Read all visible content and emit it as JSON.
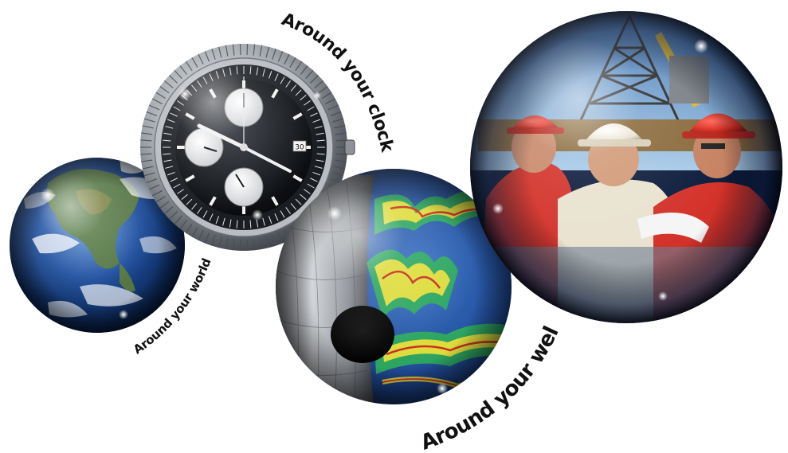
{
  "captions": {
    "world": "Around your world",
    "clock": "Around your clock",
    "well": "Around your well"
  },
  "watch": {
    "date": "30"
  },
  "spheres": [
    {
      "id": "globe",
      "subject": "earth"
    },
    {
      "id": "watch",
      "subject": "chronograph-watch"
    },
    {
      "id": "well",
      "subject": "wellbore-seismic"
    },
    {
      "id": "crew",
      "subject": "oil-rig-workers"
    }
  ],
  "colors": {
    "caption": "#111111",
    "ocean": "#1f4f9e",
    "land": "#5c7c3c",
    "watch_dial": "#111418",
    "seismic_blue": "#2b5fb3",
    "seismic_yellow": "#f2e23a",
    "hardhat_red": "#d82a1f",
    "shirt_red": "#d3322a",
    "sky": "#6fa7d8"
  }
}
